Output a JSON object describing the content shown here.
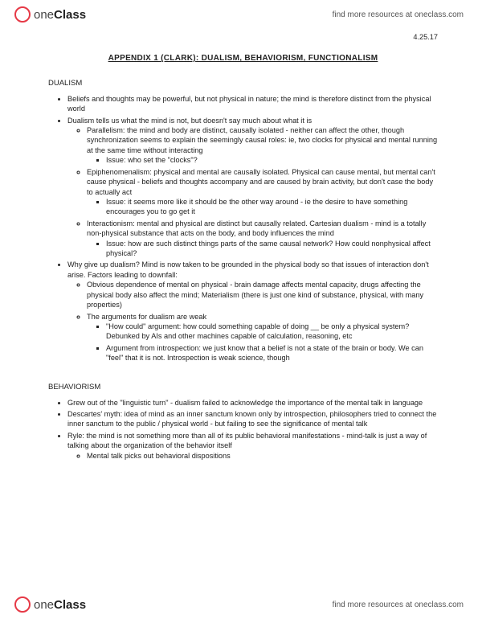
{
  "brand": {
    "part1": "one",
    "part2": "Class"
  },
  "tagline": "find more resources at oneclass.com",
  "date": "4.25.17",
  "title": "APPENDIX 1 (CLARK): DUALISM, BEHAVIORISM, FUNCTIONALISM",
  "sections": {
    "dualism": {
      "heading": "DUALISM",
      "b1": "Beliefs and thoughts may be powerful, but not physical in nature; the mind is therefore distinct from the physical world",
      "b2": "Dualism tells us what the mind is not, but doesn't say much about what it is",
      "b2a": "Parallelism: the mind and body are distinct, causally isolated - neither can affect the other, though synchronization seems to explain the seemingly causal roles: ie, two clocks for physical and mental running at the same time without interacting",
      "b2a_i": "Issue: who set the \"clocks\"?",
      "b2b": "Epiphenomenalism: physical and mental are causally isolated. Physical can cause mental, but mental can't cause physical - beliefs and thoughts accompany and are caused by brain activity, but don't case the body to actually act",
      "b2b_i": "Issue: it seems more like it should be the other way around - ie the desire to have something encourages you to go get it",
      "b2c": "Interactionism: mental and physical are distinct but causally related. Cartesian dualism - mind is a totally non-physical substance that acts on the body, and body influences the mind",
      "b2c_i": "Issue: how are such distinct things parts of the same causal network? How could nonphysical affect physical?",
      "b3": "Why give up dualism? Mind is now taken to be grounded in the physical body so that issues of interaction don't arise. Factors leading to downfall:",
      "b3a": "Obvious dependence of mental on physical - brain damage affects mental capacity, drugs affecting the physical body also affect the mind; Materialism (there is just one kind of substance, physical, with many properties)",
      "b3b": "The arguments for dualism are weak",
      "b3b_i": "\"How could\" argument: how could something capable of doing __ be only a physical system? Debunked by AIs and other machines capable of calculation, reasoning, etc",
      "b3b_ii": "Argument from introspection: we just know that a belief is not a state of the brain or body. We can \"feel\" that it is not. Introspection is weak science, though"
    },
    "behaviorism": {
      "heading": "BEHAVIORISM",
      "b1": "Grew out of the \"linguistic turn\" - dualism failed to acknowledge the importance of the mental talk in language",
      "b2": "Descartes' myth: idea of mind as an inner sanctum known only by introspection, philosophers tried to connect the inner sanctum to the public / physical world - but failing to see the significance of mental talk",
      "b3": "Ryle: the mind is not something more than all of its public behavioral manifestations - mind-talk is just a way of talking about the organization of the behavior itself",
      "b3a": "Mental talk picks out behavioral dispositions"
    }
  }
}
